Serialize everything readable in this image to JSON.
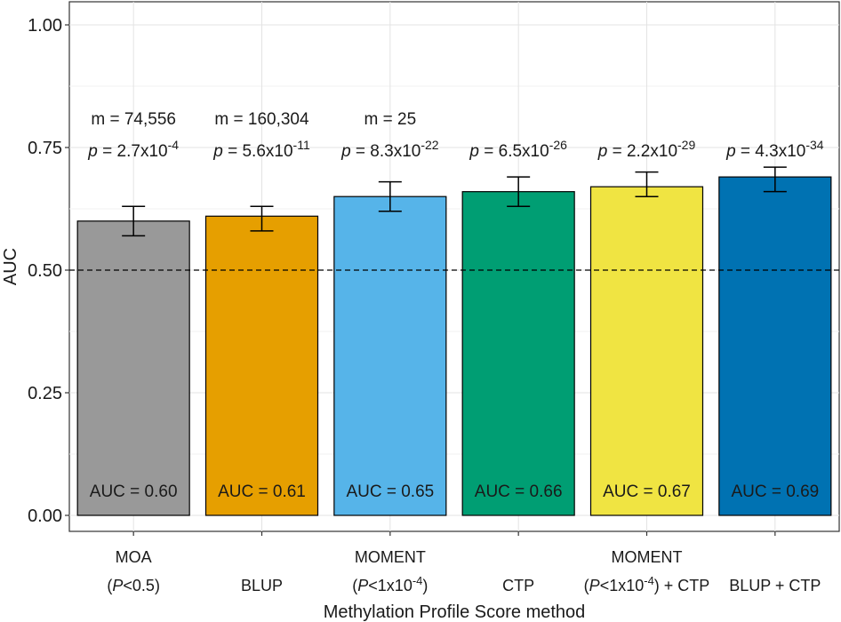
{
  "chart_data": {
    "type": "bar",
    "xlabel": "Methylation Profile Score method",
    "ylabel": "AUC",
    "ylim": [
      0,
      1.05
    ],
    "yticks": [
      {
        "value": 0.0,
        "label": "0.00"
      },
      {
        "value": 0.25,
        "label": "0.25"
      },
      {
        "value": 0.5,
        "label": "0.50"
      },
      {
        "value": 0.75,
        "label": "0.75"
      },
      {
        "value": 1.0,
        "label": "1.00"
      }
    ],
    "grid": true,
    "reference_line": {
      "value": 0.5,
      "style": "dashed"
    },
    "categories": [
      {
        "line1": "MOA",
        "line2": {
          "pre": "(",
          "it": "P",
          "post": "<0.5)",
          "sup": "",
          "after": ""
        }
      },
      {
        "line1": "",
        "line2": {
          "pre": "BLUP",
          "it": "",
          "post": "",
          "sup": "",
          "after": ""
        }
      },
      {
        "line1": "MOMENT",
        "line2": {
          "pre": "(",
          "it": "P",
          "post": "<1x10",
          "sup": "-4",
          "after": ")"
        }
      },
      {
        "line1": "",
        "line2": {
          "pre": "CTP",
          "it": "",
          "post": "",
          "sup": "",
          "after": ""
        }
      },
      {
        "line1": "MOMENT",
        "line2": {
          "pre": "(",
          "it": "P",
          "post": "<1x10",
          "sup": "-4",
          "after": ") + CTP"
        }
      },
      {
        "line1": "",
        "line2": {
          "pre": "BLUP + CTP",
          "it": "",
          "post": "",
          "sup": "",
          "after": ""
        }
      }
    ],
    "values": [
      0.6,
      0.61,
      0.65,
      0.66,
      0.67,
      0.69
    ],
    "ci_low": [
      0.57,
      0.58,
      0.62,
      0.63,
      0.65,
      0.66
    ],
    "ci_high": [
      0.63,
      0.63,
      0.68,
      0.69,
      0.7,
      0.71
    ],
    "colors": [
      "#999999",
      "#E69F00",
      "#56B4E9",
      "#009E73",
      "#F0E442",
      "#0072B2"
    ],
    "bar_labels": [
      "AUC = 0.60",
      "AUC = 0.61",
      "AUC = 0.65",
      "AUC = 0.66",
      "AUC = 0.67",
      "AUC = 0.69"
    ],
    "m_labels": [
      "m = 74,556",
      "m = 160,304",
      "m = 25",
      "",
      "",
      ""
    ],
    "p_labels": [
      {
        "base": " = 2.7x10",
        "exp": "-4"
      },
      {
        "base": " = 5.6x10",
        "exp": "-11"
      },
      {
        "base": " = 8.3x10",
        "exp": "-22"
      },
      {
        "base": " = 6.5x10",
        "exp": "-26"
      },
      {
        "base": " = 2.2x10",
        "exp": "-29"
      },
      {
        "base": " = 4.3x10",
        "exp": "-34"
      }
    ],
    "p_symbol": "p"
  }
}
